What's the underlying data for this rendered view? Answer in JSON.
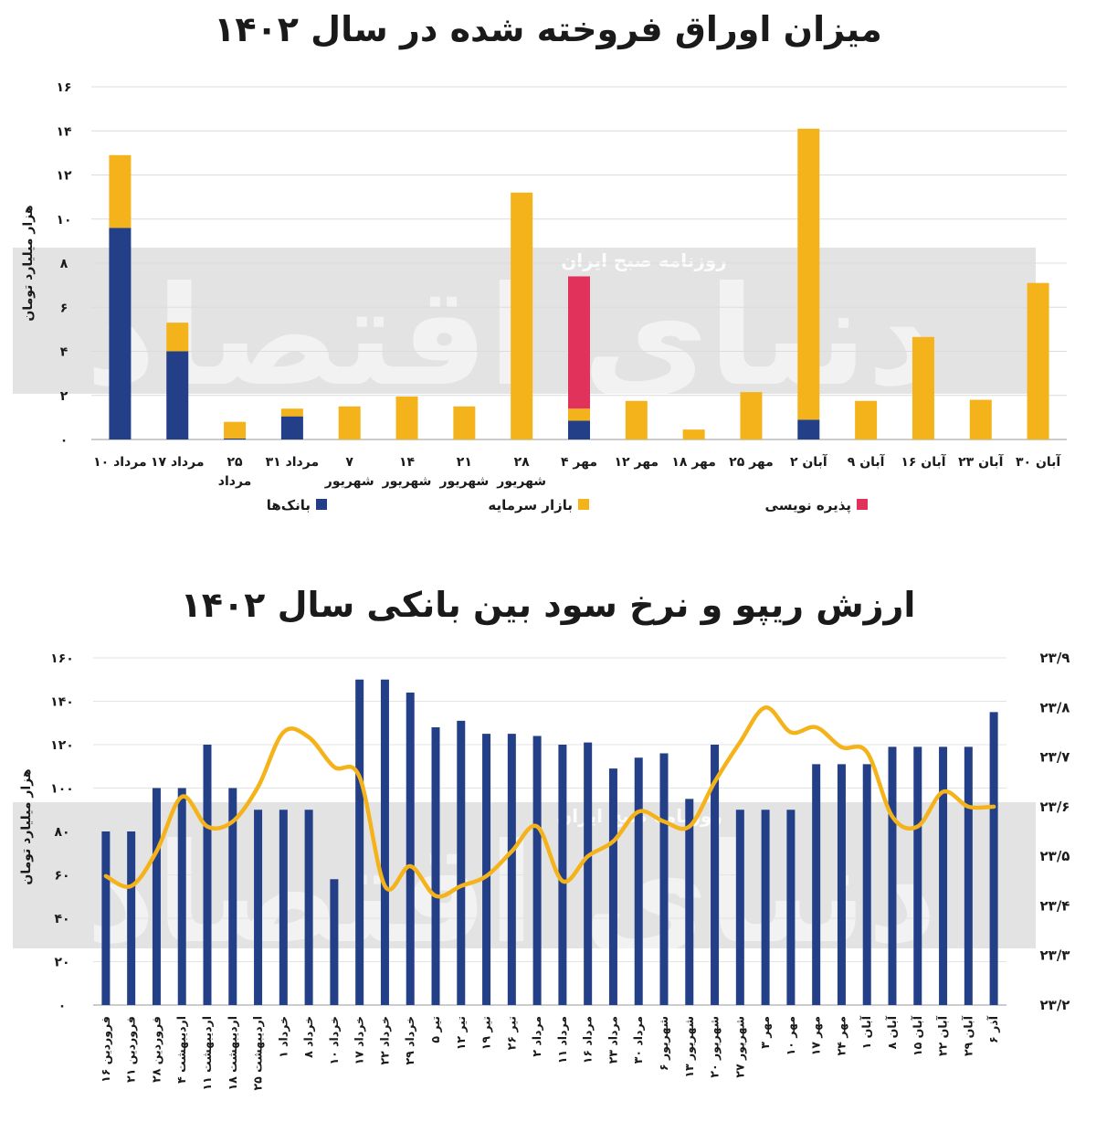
{
  "chart_data": [
    {
      "type": "bar",
      "stacked": true,
      "title": "میزان اوراق فروخته شده در سال ۱۴۰۲",
      "ylabel": "هزار میلیارد تومان",
      "ylim": [
        0,
        16
      ],
      "yticks": [
        "۰",
        "۲",
        "۴",
        "۶",
        "۸",
        "۱۰",
        "۱۲",
        "۱۴",
        "۱۶"
      ],
      "grid": true,
      "legend_position": "bottom",
      "categories": [
        [
          "۱۰ مرداد"
        ],
        [
          "۱۷ مرداد"
        ],
        [
          "۲۵",
          "مرداد"
        ],
        [
          "۳۱ مرداد"
        ],
        [
          "۷",
          "شهریور"
        ],
        [
          "۱۴",
          "شهریور"
        ],
        [
          "۲۱",
          "شهریور"
        ],
        [
          "۲۸",
          "شهریور"
        ],
        [
          "۴ مهر"
        ],
        [
          "۱۲ مهر"
        ],
        [
          "۱۸ مهر"
        ],
        [
          "۲۵ مهر"
        ],
        [
          "۲ آبان"
        ],
        [
          "۹ آبان"
        ],
        [
          "۱۶ آبان"
        ],
        [
          "۲۳ آبان"
        ],
        [
          "۳۰ آبان"
        ]
      ],
      "series": [
        {
          "name": "بانک‌ها",
          "color": "#233f87",
          "values": [
            9.6,
            4.0,
            0.05,
            1.05,
            0,
            0,
            0,
            0,
            0.85,
            0,
            0,
            0,
            0.9,
            0,
            0,
            0,
            0
          ]
        },
        {
          "name": "بازار سرمایه",
          "color": "#f5b31b",
          "values": [
            3.3,
            1.3,
            0.75,
            0.35,
            1.5,
            1.95,
            1.5,
            11.2,
            0.55,
            1.75,
            0.45,
            2.15,
            13.2,
            1.75,
            4.65,
            1.8,
            7.1
          ]
        },
        {
          "name": "پذیره نویسی",
          "color": "#e0325a",
          "values": [
            0,
            0,
            0,
            0,
            0,
            0,
            0,
            0,
            6.0,
            0,
            0,
            0,
            0,
            0,
            0,
            0,
            0
          ]
        }
      ]
    },
    {
      "type": "bar+line",
      "title": "ارزش ریپو و نرخ سود بین بانکی سال ۱۴۰۲",
      "ylabel": "هزار میلیارد تومان",
      "ylim": [
        0,
        160
      ],
      "y2lim": [
        23.2,
        23.9
      ],
      "yticks": [
        "۰",
        "۲۰",
        "۴۰",
        "۶۰",
        "۸۰",
        "۱۰۰",
        "۱۲۰",
        "۱۴۰",
        "۱۶۰"
      ],
      "y2ticks": [
        "۲۳/۲",
        "۲۳/۳",
        "۲۳/۴",
        "۲۳/۵",
        "۲۳/۶",
        "۲۳/۷",
        "۲۳/۸",
        "۲۳/۹"
      ],
      "categories": [
        "۱۶ فروردین",
        "۲۱ فروردین",
        "۲۸ فروردین",
        "۴ اردیبهشت",
        "۱۱ اردیبهشت",
        "۱۸ اردیبهشت",
        "۲۵ اردیبهشت",
        "۱ خرداد",
        "۸ خرداد",
        "۱۰ خرداد",
        "۱۷ خرداد",
        "۲۲ خرداد",
        "۲۹ خرداد",
        "۵ تیر",
        "۱۲ تیر",
        "۱۹ تیر",
        "۲۶ تیر",
        "۲ مرداد",
        "۱۱ مرداد",
        "۱۶ مرداد",
        "۲۳ مرداد",
        "۳۰ مرداد",
        "۶ شهریور",
        "۱۳ شهریور",
        "۲۰ شهریور",
        "۲۷ شهریور",
        "۳ مهر",
        "۱۰ مهر",
        "۱۷ مهر",
        "۲۴ مهر",
        "۱ آبان",
        "۸ آبان",
        "۱۵ آبان",
        "۲۲ آبان",
        "۲۹ آبان",
        "۶ آذر"
      ],
      "series": [
        {
          "name": "ریپو",
          "type": "bar",
          "color": "#233f87",
          "values": [
            80,
            80,
            100,
            100,
            120,
            100,
            90,
            90,
            90,
            58,
            150,
            150,
            144,
            128,
            131,
            125,
            125,
            124,
            120,
            121,
            109,
            114,
            116,
            95,
            120,
            90,
            90,
            90,
            111,
            111,
            111,
            119,
            119,
            119,
            119,
            135
          ]
        },
        {
          "name": "نرخ سود بین بانکی",
          "type": "line",
          "color": "#f5b31b",
          "values": [
            23.46,
            23.44,
            23.51,
            23.62,
            23.56,
            23.57,
            23.64,
            23.75,
            23.74,
            23.68,
            23.66,
            23.44,
            23.48,
            23.42,
            23.44,
            23.46,
            23.51,
            23.56,
            23.45,
            23.5,
            23.53,
            23.59,
            23.57,
            23.56,
            23.65,
            23.73,
            23.8,
            23.75,
            23.76,
            23.72,
            23.71,
            23.58,
            23.56,
            23.63,
            23.6,
            23.6
          ]
        }
      ]
    }
  ],
  "titles": {
    "chart1": "میزان اوراق فروخته شده در سال ۱۴۰۲",
    "chart2": "ارزش ریپو و نرخ سود بین بانکی سال ۱۴۰۲"
  },
  "watermark": {
    "brand": "دنیای اقتصاد",
    "stamp": "روزنامه صبح ایران"
  }
}
